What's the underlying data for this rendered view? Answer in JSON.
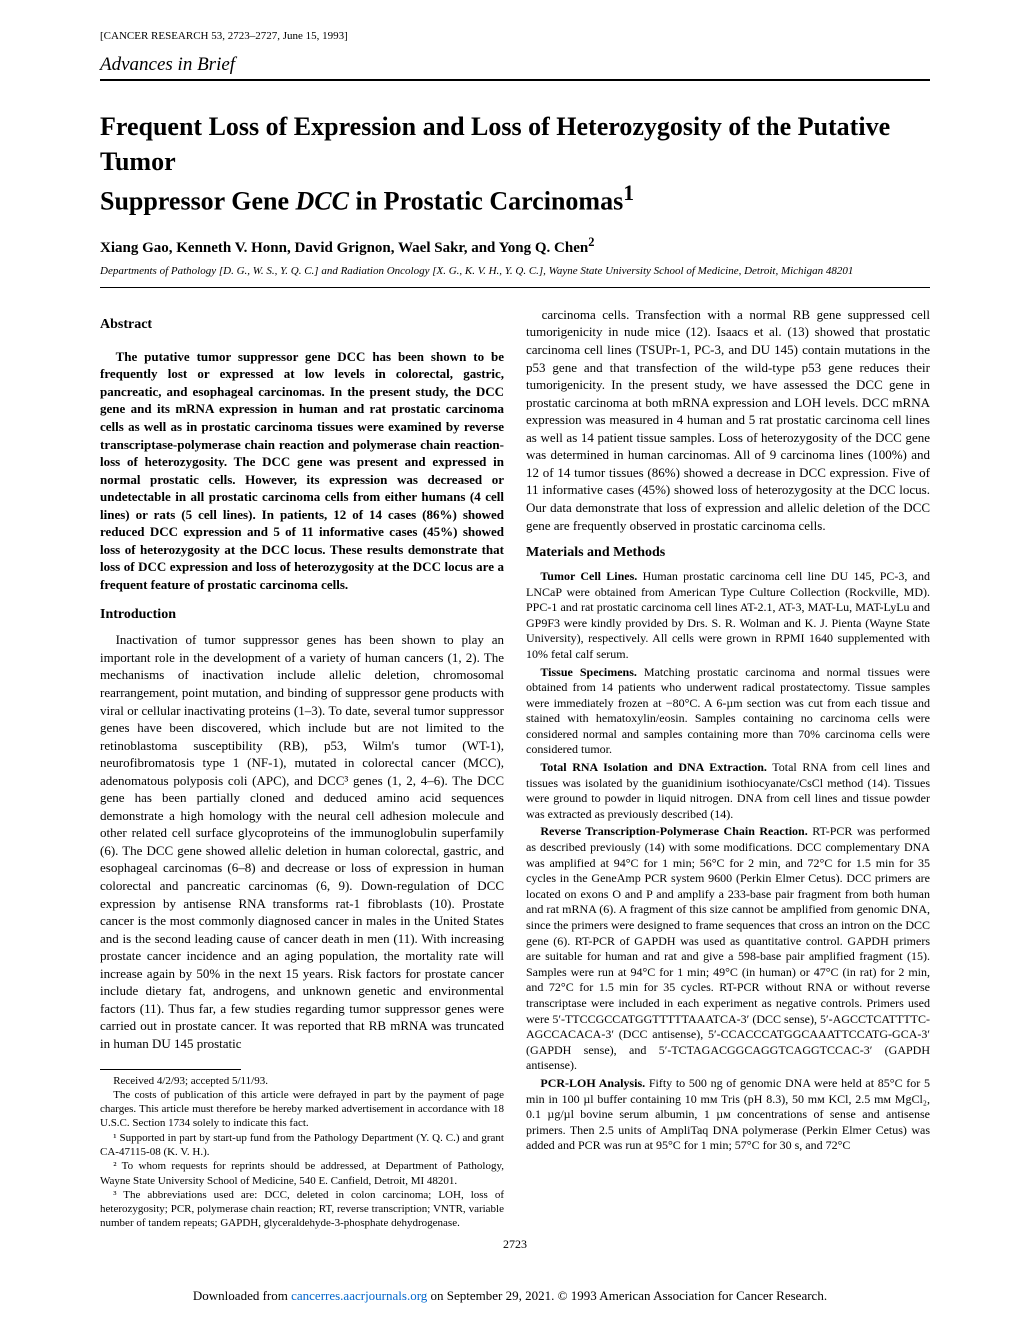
{
  "journal_info": "[CANCER RESEARCH 53, 2723–2727, June 15, 1993]",
  "section": "Advances in Brief",
  "title_line1": "Frequent Loss of Expression and Loss of Heterozygosity of the Putative Tumor",
  "title_line2_a": "Suppressor Gene ",
  "title_line2_b": "DCC",
  "title_line2_c": " in Prostatic Carcinomas",
  "title_sup": "1",
  "authors": "Xiang Gao, Kenneth V. Honn, David Grignon, Wael Sakr, and Yong Q. Chen",
  "authors_sup": "2",
  "affiliation": "Departments of Pathology [D. G., W. S., Y. Q. C.] and Radiation Oncology [X. G., K. V. H., Y. Q. C.], Wayne State University School of Medicine, Detroit, Michigan 48201",
  "abstract_head": "Abstract",
  "abstract_text": "The putative tumor suppressor gene DCC has been shown to be frequently lost or expressed at low levels in colorectal, gastric, pancreatic, and esophageal carcinomas. In the present study, the DCC gene and its mRNA expression in human and rat prostatic carcinoma cells as well as in prostatic carcinoma tissues were examined by reverse transcriptase-polymerase chain reaction and polymerase chain reaction-loss of heterozygosity. The DCC gene was present and expressed in normal prostatic cells. However, its expression was decreased or undetectable in all prostatic carcinoma cells from either humans (4 cell lines) or rats (5 cell lines). In patients, 12 of 14 cases (86%) showed reduced DCC expression and 5 of 11 informative cases (45%) showed loss of heterozygosity at the DCC locus. These results demonstrate that loss of DCC expression and loss of heterozygosity at the DCC locus are a frequent feature of prostatic carcinoma cells.",
  "intro_head": "Introduction",
  "intro_text": "Inactivation of tumor suppressor genes has been shown to play an important role in the development of a variety of human cancers (1, 2). The mechanisms of inactivation include allelic deletion, chromosomal rearrangement, point mutation, and binding of suppressor gene products with viral or cellular inactivating proteins (1–3). To date, several tumor suppressor genes have been discovered, which include but are not limited to the retinoblastoma susceptibility (RB), p53, Wilm's tumor (WT-1), neurofibromatosis type 1 (NF-1), mutated in colorectal cancer (MCC), adenomatous polyposis coli (APC), and DCC³ genes (1, 2, 4–6). The DCC gene has been partially cloned and deduced amino acid sequences demonstrate a high homology with the neural cell adhesion molecule and other related cell surface glycoproteins of the immunoglobulin superfamily (6). The DCC gene showed allelic deletion in human colorectal, gastric, and esophageal carcinomas (6–8) and decrease or loss of expression in human colorectal and pancreatic carcinomas (6, 9). Down-regulation of DCC expression by antisense RNA transforms rat-1 fibroblasts (10). Prostate cancer is the most commonly diagnosed cancer in males in the United States and is the second leading cause of cancer death in men (11). With increasing prostate cancer incidence and an aging population, the mortality rate will increase again by 50% in the next 15 years. Risk factors for prostate cancer include dietary fat, androgens, and unknown genetic and environmental factors (11). Thus far, a few studies regarding tumor suppressor genes were carried out in prostate cancer. It was reported that RB mRNA was truncated in human DU 145 prostatic",
  "col2_p1": "carcinoma cells. Transfection with a normal RB gene suppressed cell tumorigenicity in nude mice (12). Isaacs et al. (13) showed that prostatic carcinoma cell lines (TSUPr-1, PC-3, and DU 145) contain mutations in the p53 gene and that transfection of the wild-type p53 gene reduces their tumorigenicity. In the present study, we have assessed the DCC gene in prostatic carcinoma at both mRNA expression and LOH levels. DCC mRNA expression was measured in 4 human and 5 rat prostatic carcinoma cell lines as well as 14 patient tissue samples. Loss of heterozygosity of the DCC gene was determined in human carcinomas. All of 9 carcinoma lines (100%) and 12 of 14 tumor tissues (86%) showed a decrease in DCC expression. Five of 11 informative cases (45%) showed loss of heterozygosity at the DCC locus. Our data demonstrate that loss of expression and allelic deletion of the DCC gene are frequently observed in prostatic carcinoma cells.",
  "mm_head": "Materials and Methods",
  "mm1_head": "Tumor Cell Lines.",
  "mm1_text": "Human prostatic carcinoma cell line DU 145, PC-3, and LNCaP were obtained from American Type Culture Collection (Rockville, MD). PPC-1 and rat prostatic carcinoma cell lines AT-2.1, AT-3, MAT-Lu, MAT-LyLu and GP9F3 were kindly provided by Drs. S. R. Wolman and K. J. Pienta (Wayne State University), respectively. All cells were grown in RPMI 1640 supplemented with 10% fetal calf serum.",
  "mm2_head": "Tissue Specimens.",
  "mm2_text": "Matching prostatic carcinoma and normal tissues were obtained from 14 patients who underwent radical prostatectomy. Tissue samples were immediately frozen at −80°C. A 6-µm section was cut from each tissue and stained with hematoxylin/eosin. Samples containing no carcinoma cells were considered normal and samples containing more than 70% carcinoma cells were considered tumor.",
  "mm3_head": "Total RNA Isolation and DNA Extraction.",
  "mm3_text": "Total RNA from cell lines and tissues was isolated by the guanidinium isothiocyanate/CsCl method (14). Tissues were ground to powder in liquid nitrogen. DNA from cell lines and tissue powder was extracted as previously described (14).",
  "mm4_head": "Reverse Transcription-Polymerase Chain Reaction.",
  "mm4_text": "RT-PCR was performed as described previously (14) with some modifications. DCC complementary DNA was amplified at 94°C for 1 min; 56°C for 2 min, and 72°C for 1.5 min for 35 cycles in the GeneAmp PCR system 9600 (Perkin Elmer Cetus). DCC primers are located on exons O and P and amplify a 233-base pair fragment from both human and rat mRNA (6). A fragment of this size cannot be amplified from genomic DNA, since the primers were designed to frame sequences that cross an intron on the DCC gene (6). RT-PCR of GAPDH was used as quantitative control. GAPDH primers are suitable for human and rat and give a 598-base pair amplified fragment (15). Samples were run at 94°C for 1 min; 49°C (in human) or 47°C (in rat) for 2 min, and 72°C for 1.5 min for 35 cycles. RT-PCR without RNA or without reverse transcriptase were included in each experiment as negative controls. Primers used were 5′-TTCCGCCATGGTTTTTAAATCA-3′ (DCC sense), 5′-AGCCTCATTTTC-AGCCACACA-3′ (DCC antisense), 5′-CCACCCATGGCAAATTCCATG-GCA-3′ (GAPDH sense), and 5′-TCTAGACGGCAGGTCAGGTCCAC-3′ (GAPDH antisense).",
  "mm5_head": "PCR-LOH Analysis.",
  "mm5_text": "Fifty to 500 ng of genomic DNA were held at 85°C for 5 min in 100 µl buffer containing 10 mᴍ Tris (pH 8.3), 50 mᴍ KCl, 2.5 mᴍ MgCl₂, 0.1 µg/µl bovine serum albumin, 1 µᴍ concentrations of sense and antisense primers. Then 2.5 units of AmpliTaq DNA polymerase (Perkin Elmer Cetus) was added and PCR was run at 95°C for 1 min; 57°C for 30 s, and 72°C",
  "fn1": "Received 4/2/93; accepted 5/11/93.",
  "fn2": "The costs of publication of this article were defrayed in part by the payment of page charges. This article must therefore be hereby marked advertisement in accordance with 18 U.S.C. Section 1734 solely to indicate this fact.",
  "fn3": "¹ Supported in part by start-up fund from the Pathology Department (Y. Q. C.) and grant CA-47115-08 (K. V. H.).",
  "fn4": "² To whom requests for reprints should be addressed, at Department of Pathology, Wayne State University School of Medicine, 540 E. Canfield, Detroit, MI 48201.",
  "fn5": "³ The abbreviations used are: DCC, deleted in colon carcinoma; LOH, loss of heterozygosity; PCR, polymerase chain reaction; RT, reverse transcription; VNTR, variable number of tandem repeats; GAPDH, glyceraldehyde-3-phosphate dehydrogenase.",
  "pagenum": "2723",
  "download_a": "Downloaded from ",
  "download_link": "cancerres.aacrjournals.org",
  "download_b": " on September 29, 2021. © 1993 American Association for Cancer Research."
}
